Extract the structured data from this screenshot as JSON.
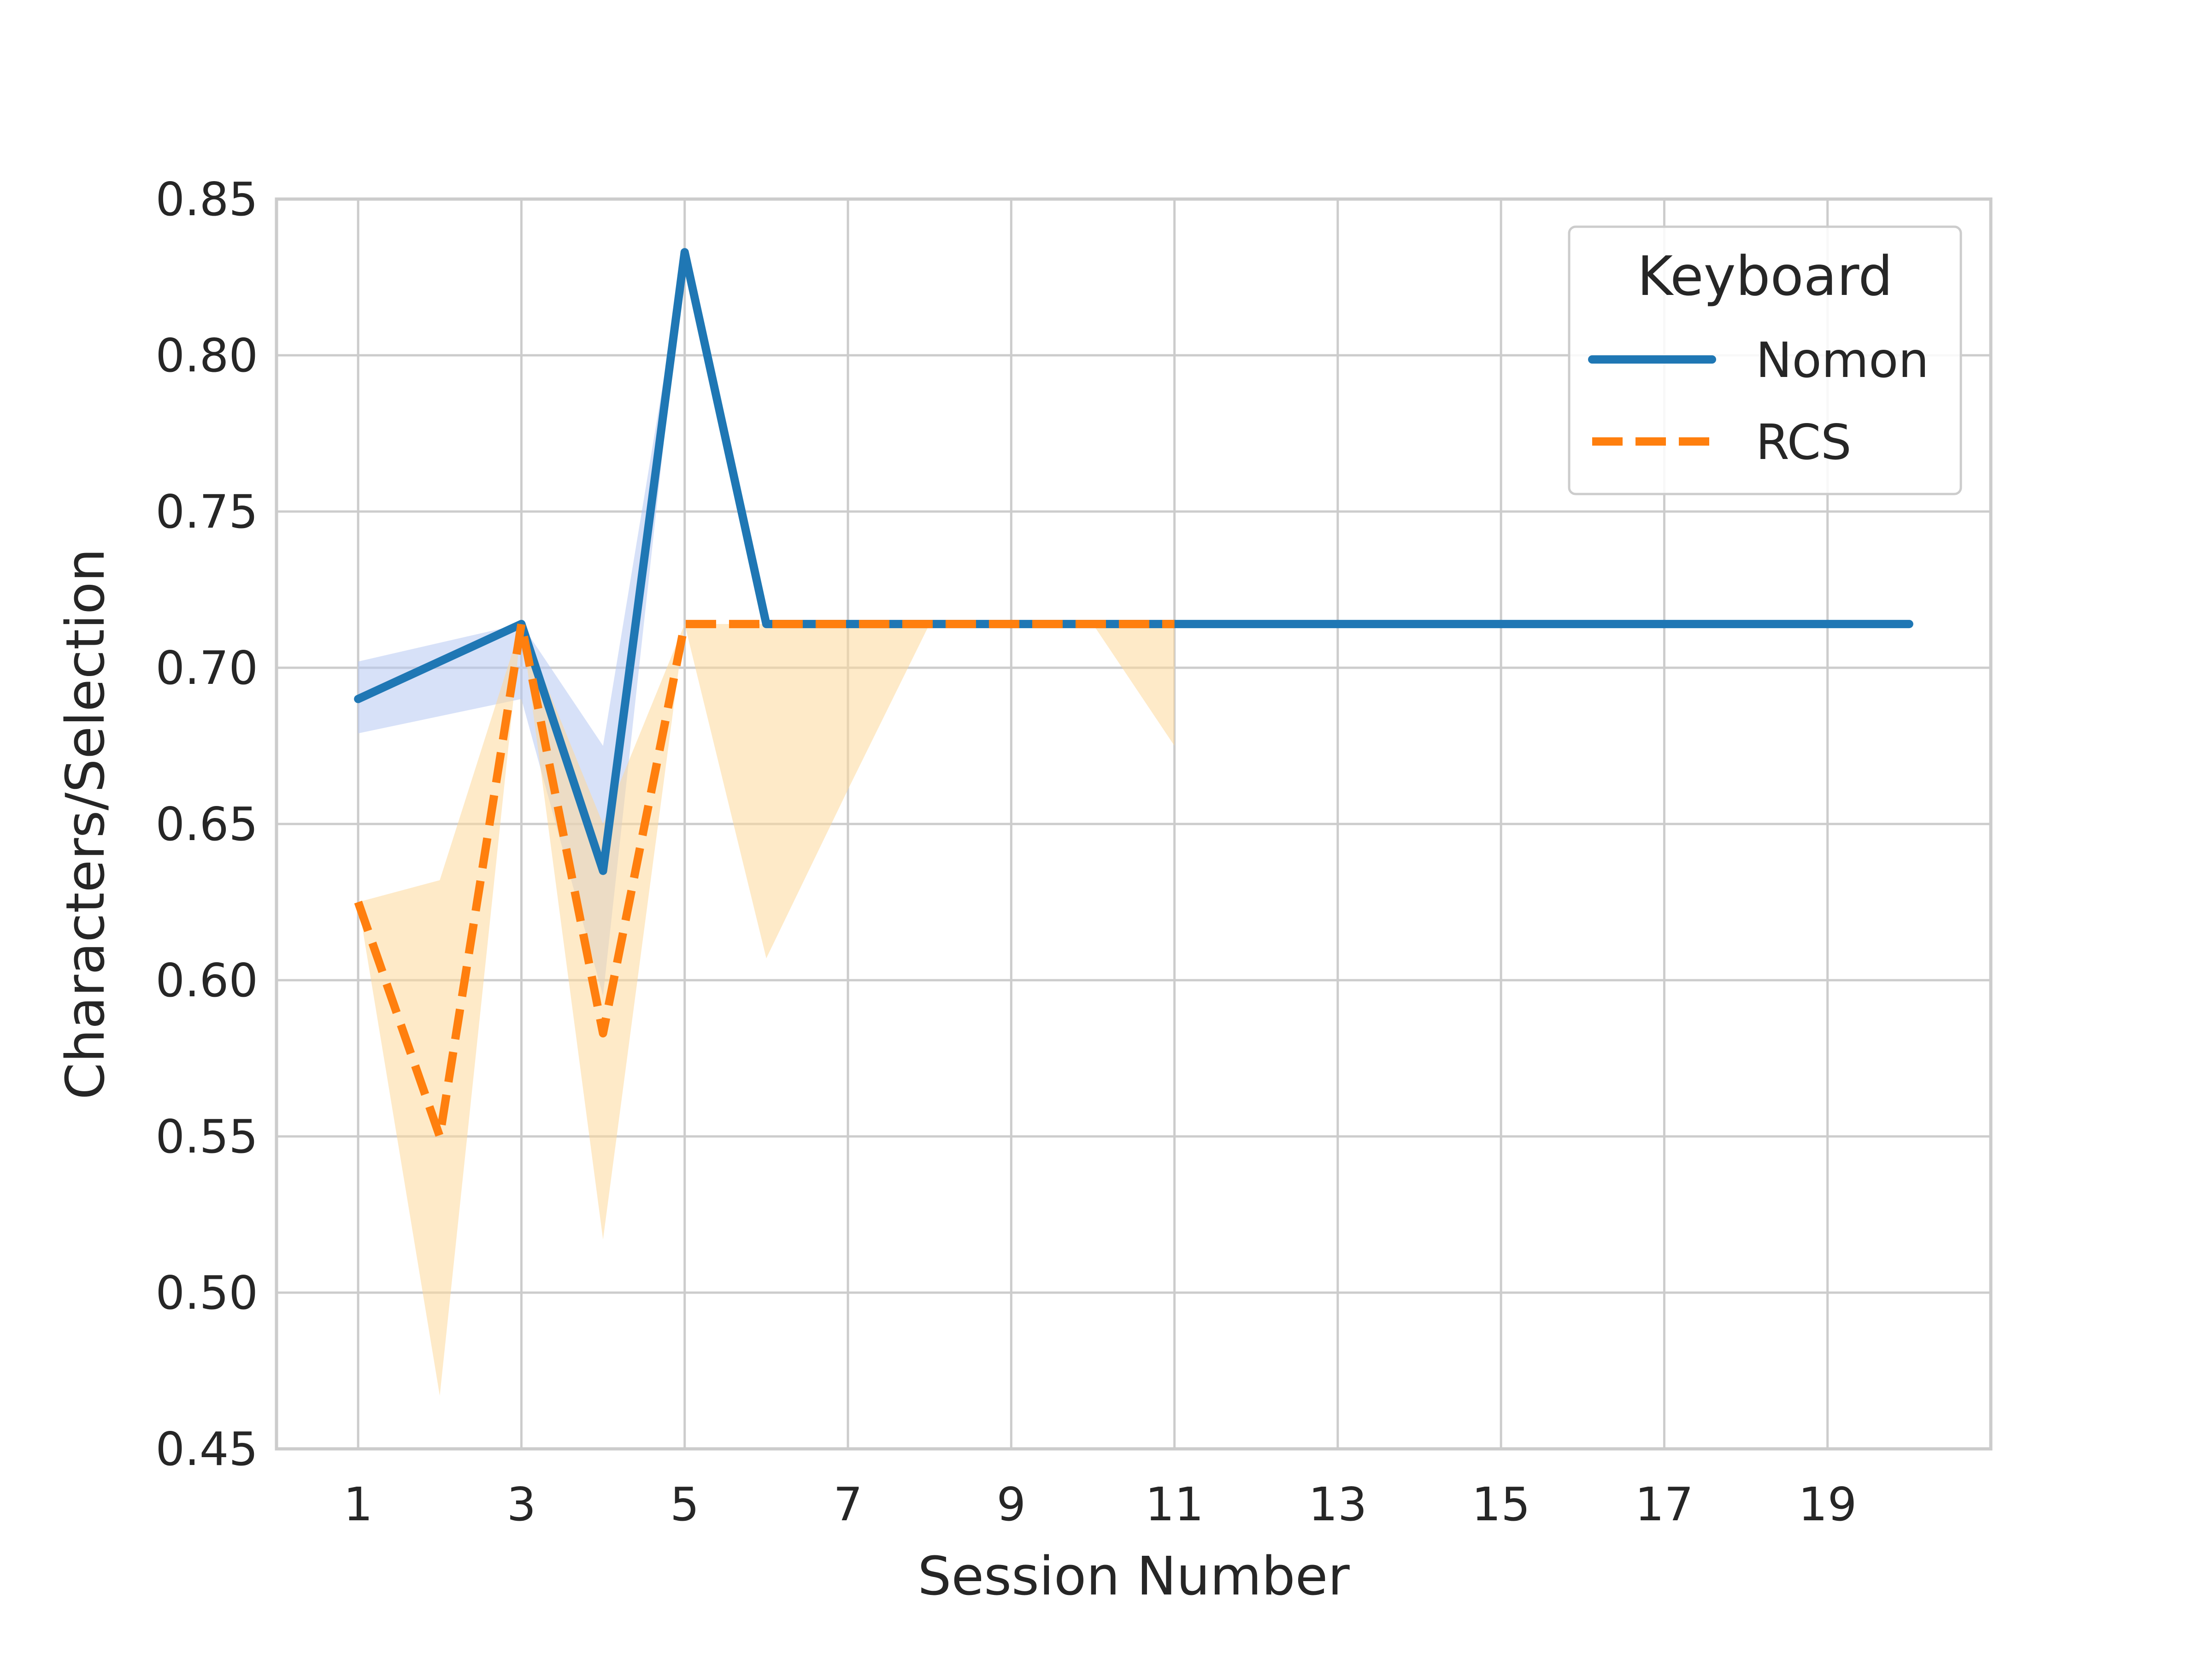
{
  "chart_data": {
    "type": "line",
    "xlabel": "Session Number",
    "ylabel": "Characters/Selection",
    "xlim": [
      0,
      21
    ],
    "ylim": [
      0.45,
      0.85
    ],
    "xticks": [
      1,
      3,
      5,
      7,
      9,
      11,
      13,
      15,
      17,
      19
    ],
    "xtick_labels": [
      "1",
      "3",
      "5",
      "7",
      "9",
      "11",
      "13",
      "15",
      "17",
      "19"
    ],
    "yticks": [
      0.45,
      0.5,
      0.55,
      0.6,
      0.65,
      0.7,
      0.75,
      0.8,
      0.85
    ],
    "ytick_labels": [
      "0.45",
      "0.50",
      "0.55",
      "0.60",
      "0.65",
      "0.70",
      "0.75",
      "0.80",
      "0.85"
    ],
    "grid": true,
    "legend": {
      "title": "Keyboard",
      "placement": "top-right"
    },
    "series": [
      {
        "name": "Nomon",
        "color": "#1f77b4",
        "band_color": "#b7c9f2",
        "linestyle": "solid",
        "x": [
          1,
          3,
          4,
          5,
          6,
          7,
          8,
          9,
          10,
          11,
          12,
          13,
          14,
          15,
          16,
          17,
          18,
          19,
          20
        ],
        "y": [
          0.69,
          0.714,
          0.635,
          0.833,
          0.714,
          0.714,
          0.714,
          0.714,
          0.714,
          0.714,
          0.714,
          0.714,
          0.714,
          0.714,
          0.714,
          0.714,
          0.714,
          0.714,
          0.714
        ],
        "ci_low": [
          0.679,
          0.69,
          0.595,
          0.833,
          0.714,
          0.714,
          0.714,
          0.714,
          0.714,
          0.714,
          0.714,
          0.714,
          0.714,
          0.714,
          0.714,
          0.714,
          0.714,
          0.714,
          0.714
        ],
        "ci_high": [
          0.702,
          0.714,
          0.675,
          0.833,
          0.714,
          0.714,
          0.714,
          0.714,
          0.714,
          0.714,
          0.714,
          0.714,
          0.714,
          0.714,
          0.714,
          0.714,
          0.714,
          0.714,
          0.714
        ]
      },
      {
        "name": "RCS",
        "color": "#ff7f0e",
        "band_color": "#fdd99b",
        "linestyle": "dashed",
        "x": [
          1,
          2,
          3,
          4,
          5,
          6,
          7,
          8,
          9,
          10,
          11
        ],
        "y": [
          0.625,
          0.55,
          0.714,
          0.583,
          0.714,
          0.714,
          0.714,
          0.714,
          0.714,
          0.714,
          0.714
        ],
        "ci_low": [
          0.625,
          0.467,
          0.714,
          0.517,
          0.714,
          0.607,
          0.661,
          0.714,
          0.714,
          0.714,
          0.675
        ],
        "ci_high": [
          0.625,
          0.632,
          0.714,
          0.65,
          0.714,
          0.714,
          0.714,
          0.714,
          0.714,
          0.714,
          0.714
        ]
      }
    ]
  }
}
